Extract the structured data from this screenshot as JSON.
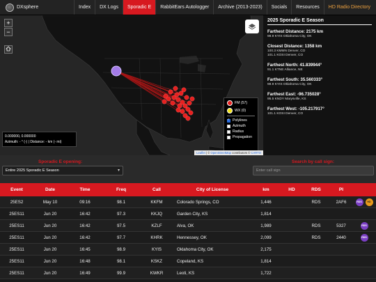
{
  "nav": {
    "brand": "DXsphere",
    "items": [
      {
        "label": "Index"
      },
      {
        "label": "DX Logs"
      },
      {
        "label": "Sporadic E"
      },
      {
        "label": "RabbitEars Autologger"
      },
      {
        "label": "Archive (2013-2023)"
      },
      {
        "label": "Socials"
      },
      {
        "label": "Resources"
      },
      {
        "label": "HD Radio Directory"
      }
    ]
  },
  "map": {
    "zoom_in": "+",
    "zoom_out": "−",
    "home_icon": "home-icon",
    "layers_icon": "layers-icon",
    "coords_line": "0.000000, 0.000000",
    "azimuth_line": "Azimuth: - ° (-) | Distance: - km (- mi)",
    "legend": {
      "fm": "FM (57)",
      "wx": "WX (0)",
      "fm_color": "#e8201f",
      "wx_color": "#f2e313",
      "checks": [
        {
          "label": "Polylines",
          "checked": true
        },
        {
          "label": "Azimuth",
          "checked": false
        },
        {
          "label": "Radius",
          "checked": false
        },
        {
          "label": "Propagation",
          "checked": false
        }
      ]
    },
    "attribution_leaflet": "Leaflet",
    "attribution_mid": " | © ",
    "attribution_osm": "OpenStreetMap",
    "attribution_end": " contributors © ",
    "attribution_carto": "CARTO"
  },
  "side": {
    "title": "2025 Sporadic E Season",
    "blocks": [
      {
        "head": "Farthest Distance: 2175 km",
        "lines": [
          "98.9 KYIS Oklahoma City, OK"
        ]
      },
      {
        "head": "Closest Distance: 1358 km",
        "lines": [
          "100.3 KMMN Denver, CO",
          "101.1 KOSI Denver, CO"
        ]
      },
      {
        "head": "Farthest North: 41.839944°",
        "lines": [
          "91.1 KTNE Alliance, NE"
        ]
      },
      {
        "head": "Farthest South: 35.560333°",
        "lines": [
          "98.9 KYIS Oklahoma City, OK"
        ]
      },
      {
        "head": "Farthest East: -96.735028°",
        "lines": [
          "95.5 KNDY Marysville, KS"
        ]
      },
      {
        "head": "Farthest West: -105.217917°",
        "lines": [
          "101.1 KOSI Denver, CO"
        ]
      }
    ]
  },
  "controls": {
    "left_label": "Sporadic E opening:",
    "select_value": "Entire 2025 Sporadic E Season",
    "right_label": "Search by call sign:",
    "search_placeholder": "Enter call sign"
  },
  "table": {
    "headers": [
      "Event",
      "Date",
      "Time",
      "Freq",
      "Call",
      "City of License",
      "km",
      "HD",
      "RDS",
      "PI",
      ""
    ],
    "rows": [
      {
        "event": "25ES2",
        "date": "May 10",
        "time": "09:16",
        "freq": "98.1",
        "call": "KKFM",
        "city": "Colorado Springs, CO",
        "km": "1,446",
        "hd": "",
        "rds": "RDS",
        "pi": "2AF6",
        "badges": [
          "RDS",
          "HD"
        ]
      },
      {
        "event": "25ES11",
        "date": "Jun 20",
        "time": "16:42",
        "freq": "97.3",
        "call": "KKJQ",
        "city": "Garden City, KS",
        "km": "1,814",
        "hd": "",
        "rds": "",
        "pi": "",
        "badges": []
      },
      {
        "event": "25ES11",
        "date": "Jun 20",
        "time": "16:42",
        "freq": "97.5",
        "call": "KZLF",
        "city": "Alva, OK",
        "km": "1,989",
        "hd": "",
        "rds": "RDS",
        "pi": "5327",
        "badges": [
          "RDS"
        ]
      },
      {
        "event": "25ES11",
        "date": "Jun 20",
        "time": "16:42",
        "freq": "97.7",
        "call": "KHRK",
        "city": "Hennessey, OK",
        "km": "2,099",
        "hd": "",
        "rds": "RDS",
        "pi": "2440",
        "badges": [
          "RDS"
        ]
      },
      {
        "event": "25ES11",
        "date": "Jun 20",
        "time": "16:45",
        "freq": "98.9",
        "call": "KYIS",
        "city": "Oklahoma City, OK",
        "km": "2,175",
        "hd": "",
        "rds": "",
        "pi": "",
        "badges": []
      },
      {
        "event": "25ES11",
        "date": "Jun 20",
        "time": "16:48",
        "freq": "98.1",
        "call": "KSKZ",
        "city": "Copeland, KS",
        "km": "1,814",
        "hd": "",
        "rds": "",
        "pi": "",
        "badges": []
      },
      {
        "event": "25ES11",
        "date": "Jun 20",
        "time": "16:49",
        "freq": "99.9",
        "call": "KWKR",
        "city": "Leoti, KS",
        "km": "1,722",
        "hd": "",
        "rds": "",
        "pi": "",
        "badges": []
      }
    ]
  }
}
